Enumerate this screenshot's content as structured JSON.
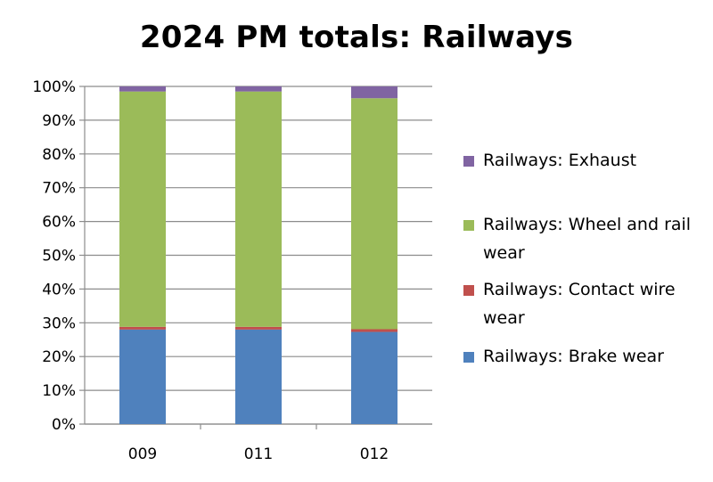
{
  "chart_data": {
    "type": "bar",
    "stacked": true,
    "percent": true,
    "title": "2024 PM totals: Railways",
    "xlabel": "",
    "ylabel": "",
    "categories": [
      "009",
      "011",
      "012"
    ],
    "ylim": [
      0,
      100
    ],
    "yticks": [
      "0%",
      "10%",
      "20%",
      "30%",
      "40%",
      "50%",
      "60%",
      "70%",
      "80%",
      "90%",
      "100%"
    ],
    "grid": true,
    "legend_position": "right",
    "series": [
      {
        "name": "Railways: Brake wear",
        "color": "#4f81bd",
        "values": [
          28,
          28,
          27.3
        ]
      },
      {
        "name": "Railways: Contact wire wear",
        "color": "#c0504d",
        "values": [
          0.8,
          0.8,
          0.8
        ]
      },
      {
        "name": "Railways: Wheel and rail wear",
        "color": "#9bbb59",
        "values": [
          69.7,
          69.7,
          68.4
        ]
      },
      {
        "name": "Railways: Exhaust",
        "color": "#8064a2",
        "values": [
          1.5,
          1.5,
          3.5
        ]
      }
    ],
    "legend_order": [
      3,
      2,
      1,
      0
    ]
  }
}
